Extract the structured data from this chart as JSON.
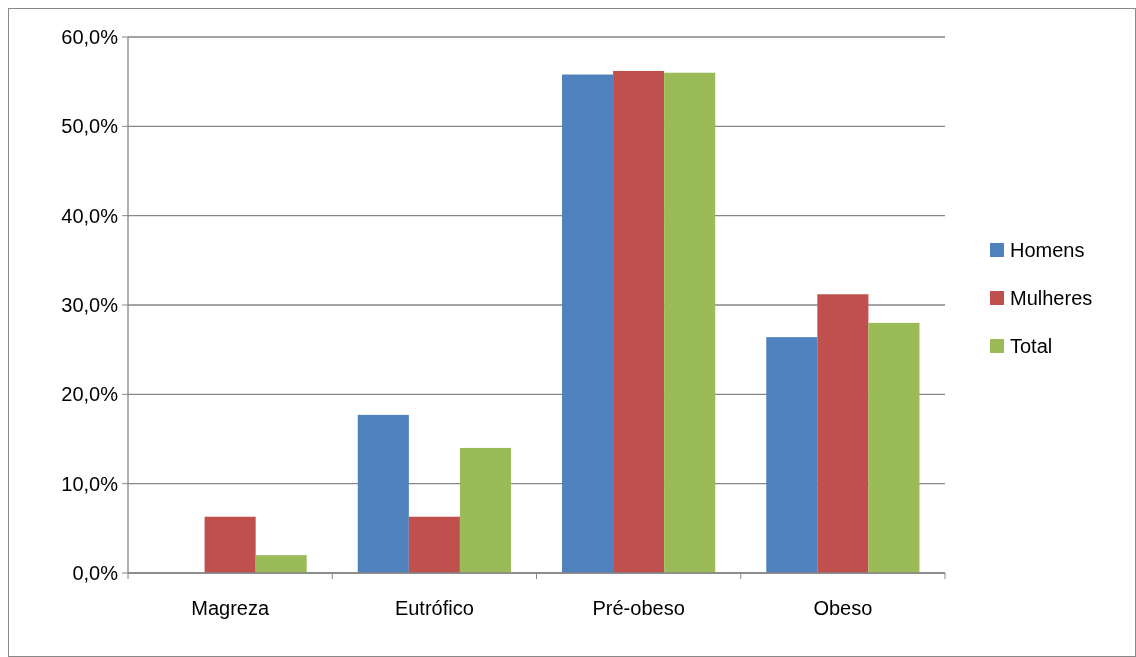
{
  "chart_data": {
    "type": "bar",
    "categories": [
      "Magreza",
      "Eutrófico",
      "Pré-obeso",
      "Obeso"
    ],
    "series": [
      {
        "name": "Homens",
        "color": "#4f81bd",
        "values": [
          0,
          17.7,
          55.8,
          26.4
        ]
      },
      {
        "name": "Mulheres",
        "color": "#c0504d",
        "values": [
          6.3,
          6.3,
          56.2,
          31.2
        ]
      },
      {
        "name": "Total",
        "color": "#9bbb59",
        "values": [
          2.0,
          14.0,
          56.0,
          28.0
        ]
      }
    ],
    "ylim": [
      0,
      60
    ],
    "yticks": [
      {
        "value": 0,
        "label": "0,0%"
      },
      {
        "value": 10,
        "label": "10,0%"
      },
      {
        "value": 20,
        "label": "20,0%"
      },
      {
        "value": 30,
        "label": "30,0%"
      },
      {
        "value": 40,
        "label": "40,0%"
      },
      {
        "value": 50,
        "label": "50,0%"
      },
      {
        "value": 60,
        "label": "60,0%"
      }
    ],
    "grid": "y",
    "legend": "right"
  }
}
